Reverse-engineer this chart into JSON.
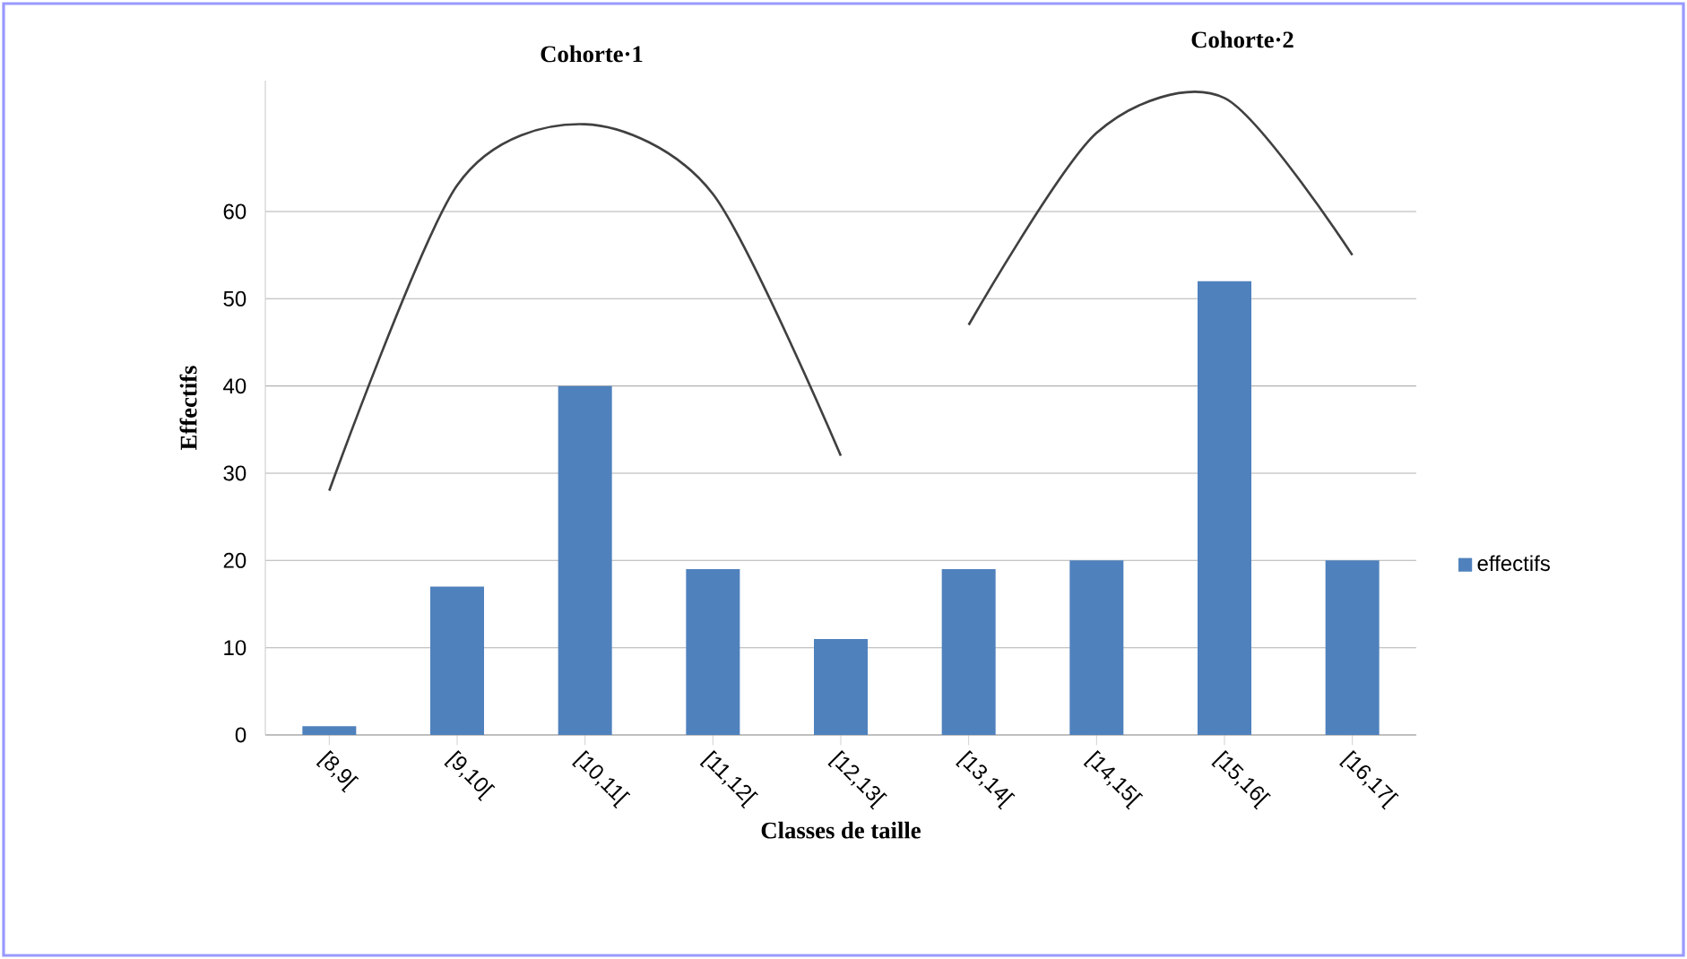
{
  "chart_data": {
    "type": "bar",
    "xlabel": "Classes de taille",
    "ylabel": "Effectifs",
    "categories": [
      "[8,9[",
      "[9,10[",
      "[10,11[",
      "[11,12[",
      "[12,13[",
      "[13,14[",
      "[14,15[",
      "[15,16[",
      "[16,17["
    ],
    "series": [
      {
        "name": "effectifs",
        "color": "#4f81bd",
        "values": [
          1,
          17,
          40,
          19,
          11,
          19,
          20,
          52,
          20
        ]
      },
      {
        "type": "line",
        "color": "#404040",
        "values": [
          28,
          63,
          70,
          62,
          32,
          null,
          null,
          null,
          null
        ]
      },
      {
        "type": "line",
        "color": "#404040",
        "values": [
          null,
          null,
          null,
          null,
          null,
          47,
          69,
          73,
          55
        ]
      }
    ],
    "ylim": [
      0,
      75
    ],
    "yticks": [
      0,
      10,
      20,
      30,
      40,
      50,
      60
    ],
    "grid": "y",
    "legend": "right",
    "annotations": [
      "Cohorte·1",
      "Cohorte·2"
    ]
  }
}
